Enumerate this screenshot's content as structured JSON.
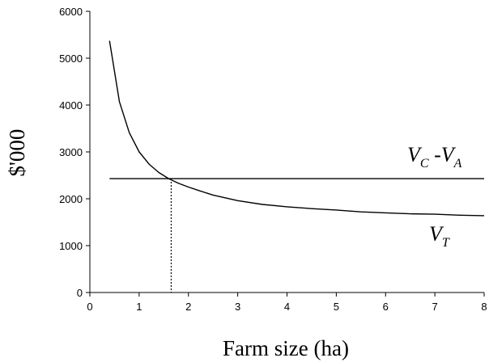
{
  "chart_data": {
    "type": "line",
    "xlabel": "Farm size (ha)",
    "ylabel": "$'000",
    "xlim": [
      0,
      8
    ],
    "ylim": [
      0,
      6000
    ],
    "xticks": [
      0,
      1,
      2,
      3,
      4,
      5,
      6,
      7,
      8
    ],
    "yticks": [
      0,
      1000,
      2000,
      3000,
      4000,
      5000,
      6000
    ],
    "grid": false,
    "series": [
      {
        "name": "V_T",
        "style": "solid",
        "x": [
          0.4,
          0.6,
          0.8,
          1.0,
          1.2,
          1.4,
          1.6,
          1.8,
          2.0,
          2.2,
          2.5,
          3.0,
          3.5,
          4.0,
          4.5,
          5.0,
          5.5,
          6.0,
          6.5,
          7.0,
          7.5,
          8.0
        ],
        "y": [
          5370,
          4070,
          3410,
          3000,
          2740,
          2560,
          2430,
          2330,
          2250,
          2180,
          2080,
          1960,
          1880,
          1830,
          1790,
          1760,
          1720,
          1700,
          1680,
          1670,
          1650,
          1640
        ]
      },
      {
        "name": "V_C - V_A",
        "style": "solid",
        "x": [
          0.4,
          8.0
        ],
        "y": [
          2430,
          2430
        ]
      }
    ],
    "reference_lines": [
      {
        "type": "vertical",
        "style": "dotted",
        "x": 1.65,
        "y_from": 0,
        "y_to": 2430
      }
    ],
    "annotations": [
      {
        "id": "vt",
        "main": "V",
        "sub": "T"
      },
      {
        "id": "vcva",
        "main1": "V",
        "sub1": "C",
        "sep": " -",
        "main2": "V",
        "sub2": "A"
      }
    ]
  }
}
